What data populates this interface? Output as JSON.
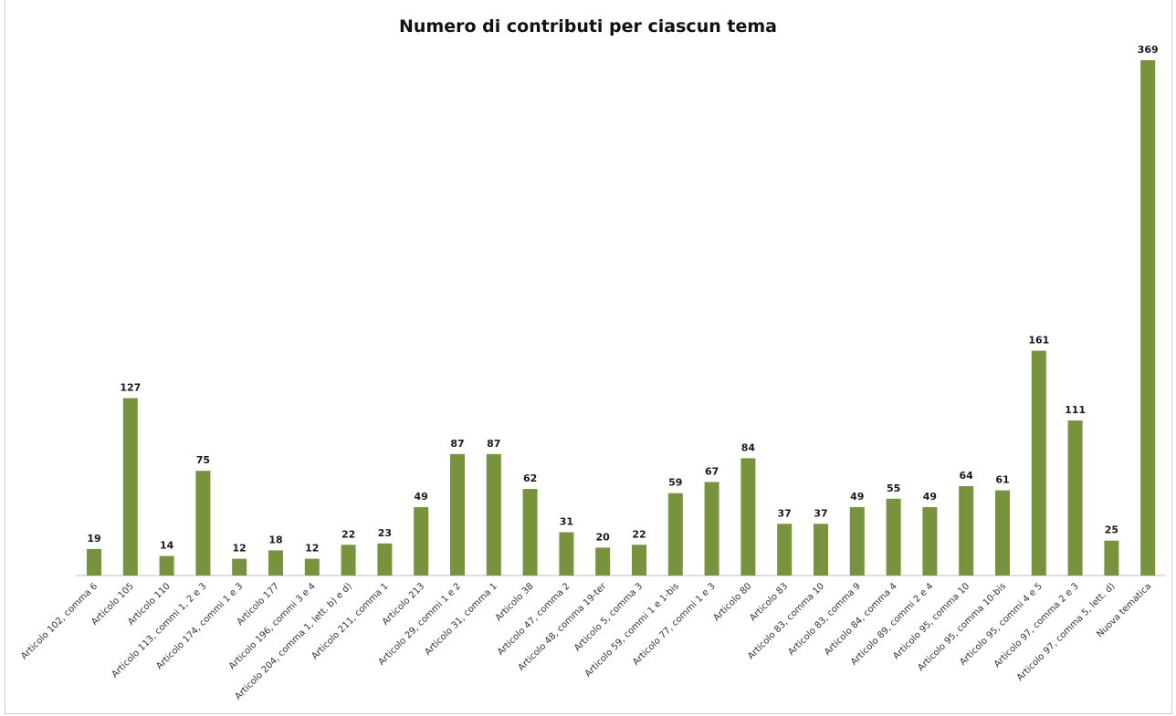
{
  "chart_data": {
    "type": "bar",
    "title": "Numero di contributi per ciascun tema",
    "categories": [
      "Articolo 102, comma 6",
      "Articolo 105",
      "Articolo 110",
      "Articolo 113, commi 1, 2 e 3",
      "Articolo 174, commi 1 e 3",
      "Articolo 177",
      "Articolo 196, commi 3 e 4",
      "Articolo 204, comma 1, lett. b) e d)",
      "Articolo 211, comma 1",
      "Articolo 213",
      "Articolo 29, commi 1 e 2",
      "Articolo 31, comma 1",
      "Articolo 38",
      "Articolo 47, comma 2",
      "Articolo 48, comma 19-ter",
      "Articolo 5, comma 3",
      "Articolo 59, commi 1 e 1-bis",
      "Articolo 77, commi 1 e 3",
      "Articolo 80",
      "Articolo 83",
      "Articolo 83, comma 10",
      "Articolo 83, comma 9",
      "Articolo 84, comma 4",
      "Articolo 89, commi 2 e 4",
      "Articolo 95, comma 10",
      "Articolo 95, comma 10-bis",
      "Articolo 95, commi 4 e 5",
      "Articolo 97, comma 2 e 3",
      "Articolo 97, comma 5, lett. d)",
      "Nuova tematica"
    ],
    "values": [
      19,
      127,
      14,
      75,
      12,
      18,
      12,
      22,
      23,
      49,
      87,
      87,
      62,
      31,
      20,
      22,
      59,
      67,
      84,
      37,
      37,
      49,
      55,
      49,
      64,
      61,
      161,
      111,
      25,
      369
    ],
    "xlabel": "",
    "ylabel": "",
    "ylim": [
      0,
      369
    ],
    "grid": false,
    "legend": "none",
    "colors": {
      "bar": "#77933c"
    }
  }
}
